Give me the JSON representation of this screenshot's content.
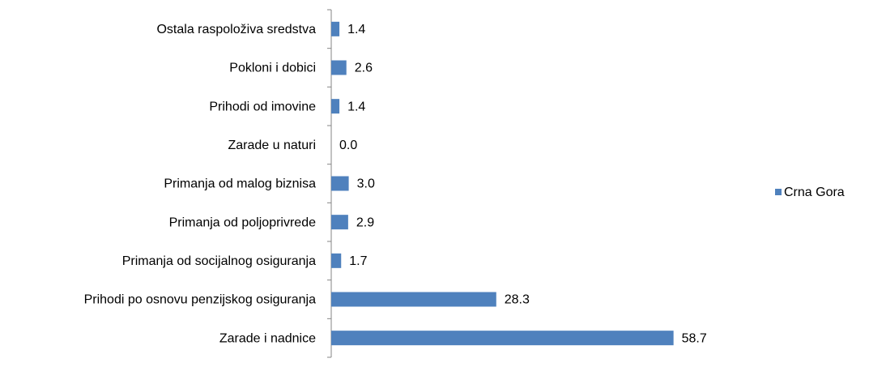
{
  "chart_data": {
    "type": "barh",
    "categories": [
      "Ostala raspoloživa sredstva",
      "Pokloni i dobici",
      "Prihodi od imovine",
      "Zarade u naturi",
      "Primanja od malog biznisa",
      "Primanja od poljoprivrede",
      "Primanja od socijalnog osiguranja",
      "Prihodi po osnovu penzijskog osiguranja",
      "Zarade i nadnice"
    ],
    "series": [
      {
        "name": "Crna Gora",
        "color": "#4f81bd",
        "values": [
          1.4,
          2.6,
          1.4,
          0.0,
          3.0,
          2.9,
          1.7,
          28.3,
          58.7
        ],
        "value_labels": [
          "1.4",
          "2.6",
          "1.4",
          "0.0",
          "3.0",
          "2.9",
          "1.7",
          "28.3",
          "58.7"
        ]
      }
    ],
    "xlim": [
      0,
      60
    ],
    "legend": "right"
  }
}
